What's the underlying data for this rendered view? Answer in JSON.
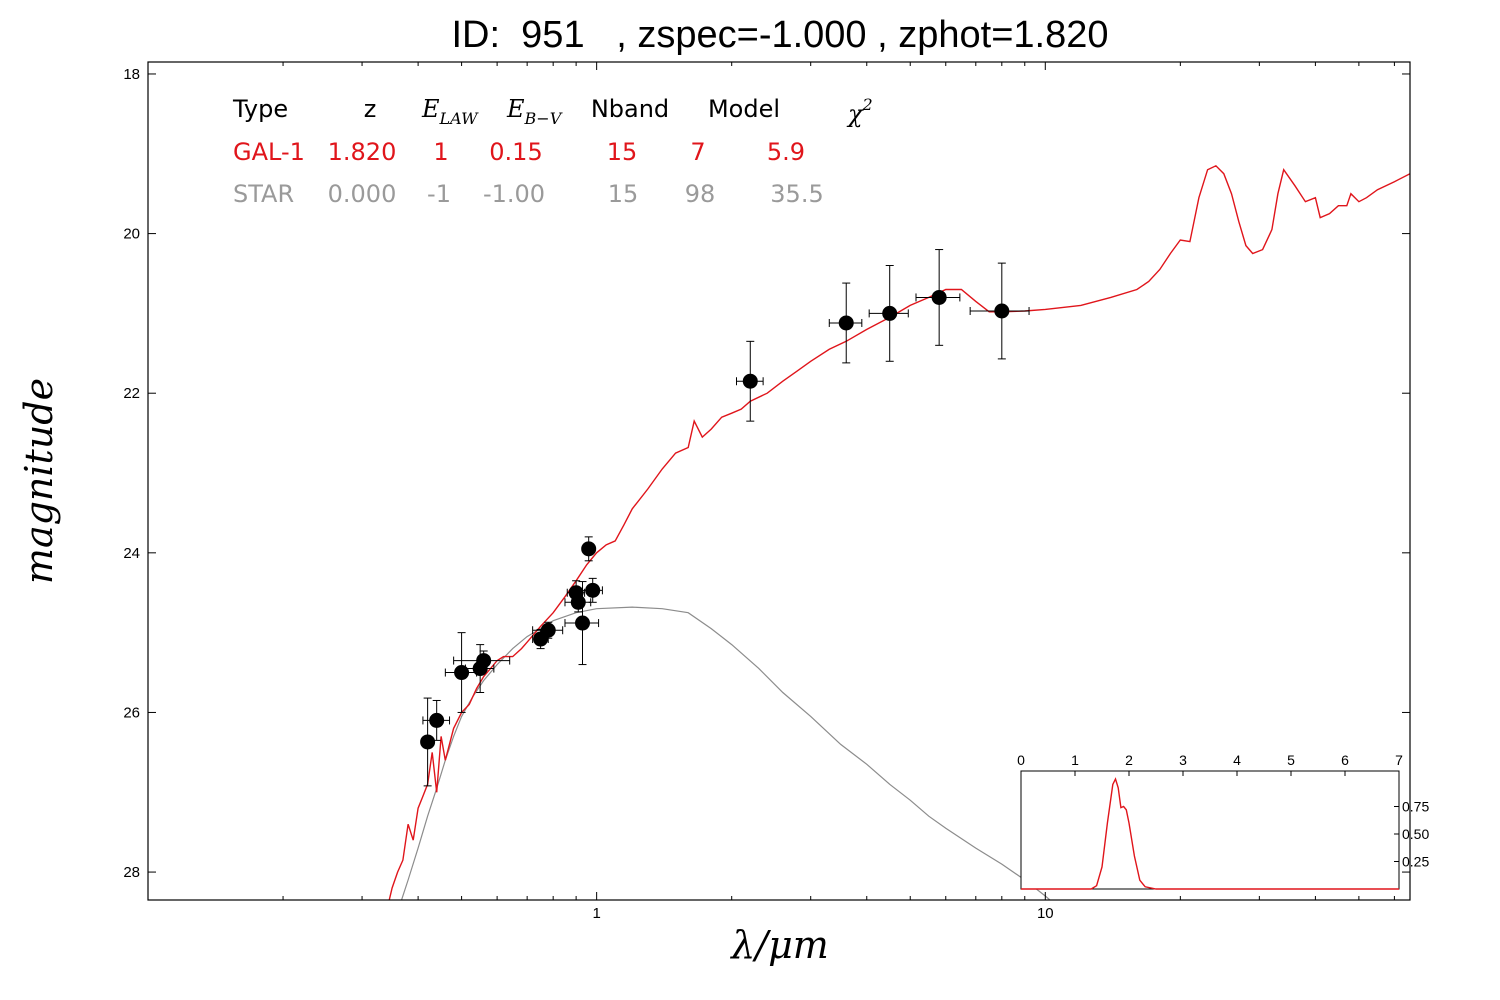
{
  "chart_data": {
    "type": "line",
    "title": "ID:  951   , zspec=-1.000 , zphot=1.820",
    "xlabel": "λ/μm",
    "ylabel": "magnitude",
    "x_scale": "log",
    "xlim": [
      0.1,
      65
    ],
    "ylim": [
      28.35,
      17.85
    ],
    "x_ticks": [
      {
        "value": 1,
        "label": "1"
      },
      {
        "value": 10,
        "label": "10"
      }
    ],
    "y_ticks": [
      {
        "value": 18,
        "label": "18"
      },
      {
        "value": 20,
        "label": "20"
      },
      {
        "value": 22,
        "label": "22"
      },
      {
        "value": 24,
        "label": "24"
      },
      {
        "value": 26,
        "label": "26"
      },
      {
        "value": 28,
        "label": "28"
      }
    ],
    "colors": {
      "galaxy": "#e0151b",
      "star": "#8c8c8c",
      "points": "#000000",
      "star_text": "#9a9a9a"
    },
    "table": {
      "headers": {
        "type": "Type",
        "z": "z",
        "elaw_main": "E",
        "elaw_sub": "LAW",
        "ebv_main": "E",
        "ebv_sub": "B−V",
        "nband": "Nband",
        "model": "Model",
        "chi_main": "χ",
        "chi_sup": "2"
      },
      "rows": [
        {
          "type": "GAL-1",
          "z": "1.820",
          "elaw": "1",
          "ebv": "0.15",
          "nband": "15",
          "model": "7",
          "chi2": "5.9",
          "color": "#e0151b"
        },
        {
          "type": "STAR",
          "z": "0.000",
          "elaw": "-1",
          "ebv": "-1.00",
          "nband": "15",
          "model": "98",
          "chi2": "35.5",
          "color": "#9a9a9a"
        }
      ]
    },
    "series": [
      {
        "name": "GAL-1",
        "color": "#e0151b",
        "points": [
          [
            0.34,
            28.5
          ],
          [
            0.35,
            28.2
          ],
          [
            0.36,
            28.0
          ],
          [
            0.37,
            27.85
          ],
          [
            0.38,
            27.4
          ],
          [
            0.39,
            27.6
          ],
          [
            0.4,
            27.2
          ],
          [
            0.41,
            27.05
          ],
          [
            0.42,
            26.9
          ],
          [
            0.43,
            26.5
          ],
          [
            0.44,
            27.0
          ],
          [
            0.45,
            26.3
          ],
          [
            0.46,
            26.6
          ],
          [
            0.48,
            26.2
          ],
          [
            0.5,
            26.0
          ],
          [
            0.52,
            25.9
          ],
          [
            0.54,
            25.7
          ],
          [
            0.56,
            25.55
          ],
          [
            0.58,
            25.45
          ],
          [
            0.6,
            25.35
          ],
          [
            0.62,
            25.3
          ],
          [
            0.65,
            25.3
          ],
          [
            0.68,
            25.2
          ],
          [
            0.7,
            25.12
          ],
          [
            0.73,
            25.0
          ],
          [
            0.75,
            24.92
          ],
          [
            0.8,
            24.75
          ],
          [
            0.85,
            24.55
          ],
          [
            0.9,
            24.35
          ],
          [
            0.95,
            24.15
          ],
          [
            1.0,
            24.0
          ],
          [
            1.05,
            23.9
          ],
          [
            1.1,
            23.85
          ],
          [
            1.15,
            23.65
          ],
          [
            1.2,
            23.45
          ],
          [
            1.3,
            23.2
          ],
          [
            1.4,
            22.95
          ],
          [
            1.5,
            22.75
          ],
          [
            1.6,
            22.68
          ],
          [
            1.65,
            22.35
          ],
          [
            1.72,
            22.55
          ],
          [
            1.8,
            22.45
          ],
          [
            1.9,
            22.3
          ],
          [
            2.0,
            22.25
          ],
          [
            2.1,
            22.2
          ],
          [
            2.2,
            22.1
          ],
          [
            2.4,
            22.0
          ],
          [
            2.6,
            21.85
          ],
          [
            2.8,
            21.72
          ],
          [
            3.0,
            21.6
          ],
          [
            3.3,
            21.45
          ],
          [
            3.6,
            21.35
          ],
          [
            4.0,
            21.2
          ],
          [
            4.5,
            21.05
          ],
          [
            5.0,
            20.9
          ],
          [
            5.5,
            20.8
          ],
          [
            6.0,
            20.7
          ],
          [
            6.5,
            20.7
          ],
          [
            7.0,
            20.85
          ],
          [
            7.5,
            20.98
          ],
          [
            8.0,
            20.98
          ],
          [
            9.0,
            20.97
          ],
          [
            10.0,
            20.95
          ],
          [
            12.0,
            20.9
          ],
          [
            14.0,
            20.8
          ],
          [
            16.0,
            20.7
          ],
          [
            17.0,
            20.6
          ],
          [
            18.0,
            20.45
          ],
          [
            19.0,
            20.25
          ],
          [
            20.0,
            20.08
          ],
          [
            21.0,
            20.1
          ],
          [
            22.0,
            19.55
          ],
          [
            23.0,
            19.2
          ],
          [
            24.0,
            19.15
          ],
          [
            25.0,
            19.25
          ],
          [
            26.0,
            19.5
          ],
          [
            27.0,
            19.85
          ],
          [
            28.0,
            20.15
          ],
          [
            29.0,
            20.25
          ],
          [
            30.5,
            20.2
          ],
          [
            32.0,
            19.95
          ],
          [
            33.0,
            19.5
          ],
          [
            34.0,
            19.2
          ],
          [
            36.0,
            19.4
          ],
          [
            38.0,
            19.6
          ],
          [
            40.0,
            19.55
          ],
          [
            41.0,
            19.8
          ],
          [
            43.0,
            19.75
          ],
          [
            45.0,
            19.65
          ],
          [
            47.0,
            19.65
          ],
          [
            48.0,
            19.5
          ],
          [
            50.0,
            19.6
          ],
          [
            52.0,
            19.55
          ],
          [
            55.0,
            19.45
          ],
          [
            60.0,
            19.35
          ],
          [
            65.0,
            19.25
          ]
        ]
      },
      {
        "name": "STAR",
        "color": "#8c8c8c",
        "points": [
          [
            0.34,
            29.0
          ],
          [
            0.36,
            28.5
          ],
          [
            0.38,
            28.1
          ],
          [
            0.4,
            27.7
          ],
          [
            0.42,
            27.3
          ],
          [
            0.44,
            26.95
          ],
          [
            0.46,
            26.6
          ],
          [
            0.48,
            26.3
          ],
          [
            0.5,
            26.05
          ],
          [
            0.53,
            25.8
          ],
          [
            0.56,
            25.6
          ],
          [
            0.6,
            25.4
          ],
          [
            0.65,
            25.2
          ],
          [
            0.7,
            25.05
          ],
          [
            0.75,
            24.95
          ],
          [
            0.8,
            24.85
          ],
          [
            0.9,
            24.75
          ],
          [
            1.0,
            24.7
          ],
          [
            1.2,
            24.68
          ],
          [
            1.4,
            24.7
          ],
          [
            1.6,
            24.75
          ],
          [
            1.8,
            24.95
          ],
          [
            2.0,
            25.15
          ],
          [
            2.3,
            25.45
          ],
          [
            2.6,
            25.75
          ],
          [
            3.0,
            26.05
          ],
          [
            3.5,
            26.4
          ],
          [
            4.0,
            26.65
          ],
          [
            4.5,
            26.9
          ],
          [
            5.0,
            27.1
          ],
          [
            5.5,
            27.3
          ],
          [
            6.0,
            27.45
          ],
          [
            7.0,
            27.7
          ],
          [
            8.0,
            27.9
          ],
          [
            9.0,
            28.1
          ],
          [
            10.0,
            28.3
          ],
          [
            11.0,
            28.5
          ]
        ]
      }
    ],
    "points": [
      {
        "x": 0.42,
        "y": 26.37,
        "xerr": 0.01,
        "yerr": 0.55
      },
      {
        "x": 0.44,
        "y": 26.1,
        "xerr": 0.03,
        "yerr": 0.25
      },
      {
        "x": 0.5,
        "y": 25.5,
        "xerr": 0.04,
        "yerr": 0.5
      },
      {
        "x": 0.55,
        "y": 25.45,
        "xerr": 0.04,
        "yerr": 0.3
      },
      {
        "x": 0.56,
        "y": 25.35,
        "xerr": 0.08,
        "yerr": 0.12
      },
      {
        "x": 0.75,
        "y": 25.08,
        "xerr": 0.03,
        "yerr": 0.12
      },
      {
        "x": 0.78,
        "y": 24.97,
        "xerr": 0.06,
        "yerr": 0.1
      },
      {
        "x": 0.9,
        "y": 24.5,
        "xerr": 0.04,
        "yerr": 0.15
      },
      {
        "x": 0.91,
        "y": 24.62,
        "xerr": 0.06,
        "yerr": 0.12
      },
      {
        "x": 0.93,
        "y": 24.88,
        "xerr": 0.08,
        "yerr": 0.52
      },
      {
        "x": 0.96,
        "y": 23.95,
        "xerr": 0.02,
        "yerr": 0.15
      },
      {
        "x": 0.98,
        "y": 24.47,
        "xerr": 0.05,
        "yerr": 0.15
      },
      {
        "x": 2.2,
        "y": 21.85,
        "xerr": 0.15,
        "yerr": 0.5
      },
      {
        "x": 3.6,
        "y": 21.12,
        "xerr": 0.3,
        "yerr": 0.5
      },
      {
        "x": 4.5,
        "y": 21.0,
        "xerr": 0.45,
        "yerr": 0.6
      },
      {
        "x": 5.8,
        "y": 20.8,
        "xerr": 0.65,
        "yerr": 0.6
      },
      {
        "x": 8.0,
        "y": 20.97,
        "xerr": 1.2,
        "yerr": 0.6
      }
    ],
    "inset": {
      "type": "line",
      "xlim": [
        0,
        7
      ],
      "ylim": [
        0,
        1
      ],
      "x_ticks": [
        "0",
        "1",
        "2",
        "3",
        "4",
        "5",
        "6",
        "7"
      ],
      "y_ticks": [
        {
          "value": 0.25,
          "label": "0.25"
        },
        {
          "value": 0.5,
          "label": "0.50"
        },
        {
          "value": 0.75,
          "label": "0.75"
        }
      ],
      "color": "#e0151b",
      "points": [
        [
          0,
          0
        ],
        [
          1.0,
          0
        ],
        [
          1.3,
          0
        ],
        [
          1.4,
          0.03
        ],
        [
          1.5,
          0.2
        ],
        [
          1.6,
          0.6
        ],
        [
          1.7,
          0.95
        ],
        [
          1.75,
          1.0
        ],
        [
          1.8,
          0.92
        ],
        [
          1.85,
          0.74
        ],
        [
          1.9,
          0.75
        ],
        [
          1.95,
          0.72
        ],
        [
          2.0,
          0.6
        ],
        [
          2.1,
          0.3
        ],
        [
          2.2,
          0.08
        ],
        [
          2.3,
          0.02
        ],
        [
          2.5,
          0.0
        ],
        [
          3.0,
          0
        ],
        [
          7.0,
          0
        ]
      ]
    }
  }
}
